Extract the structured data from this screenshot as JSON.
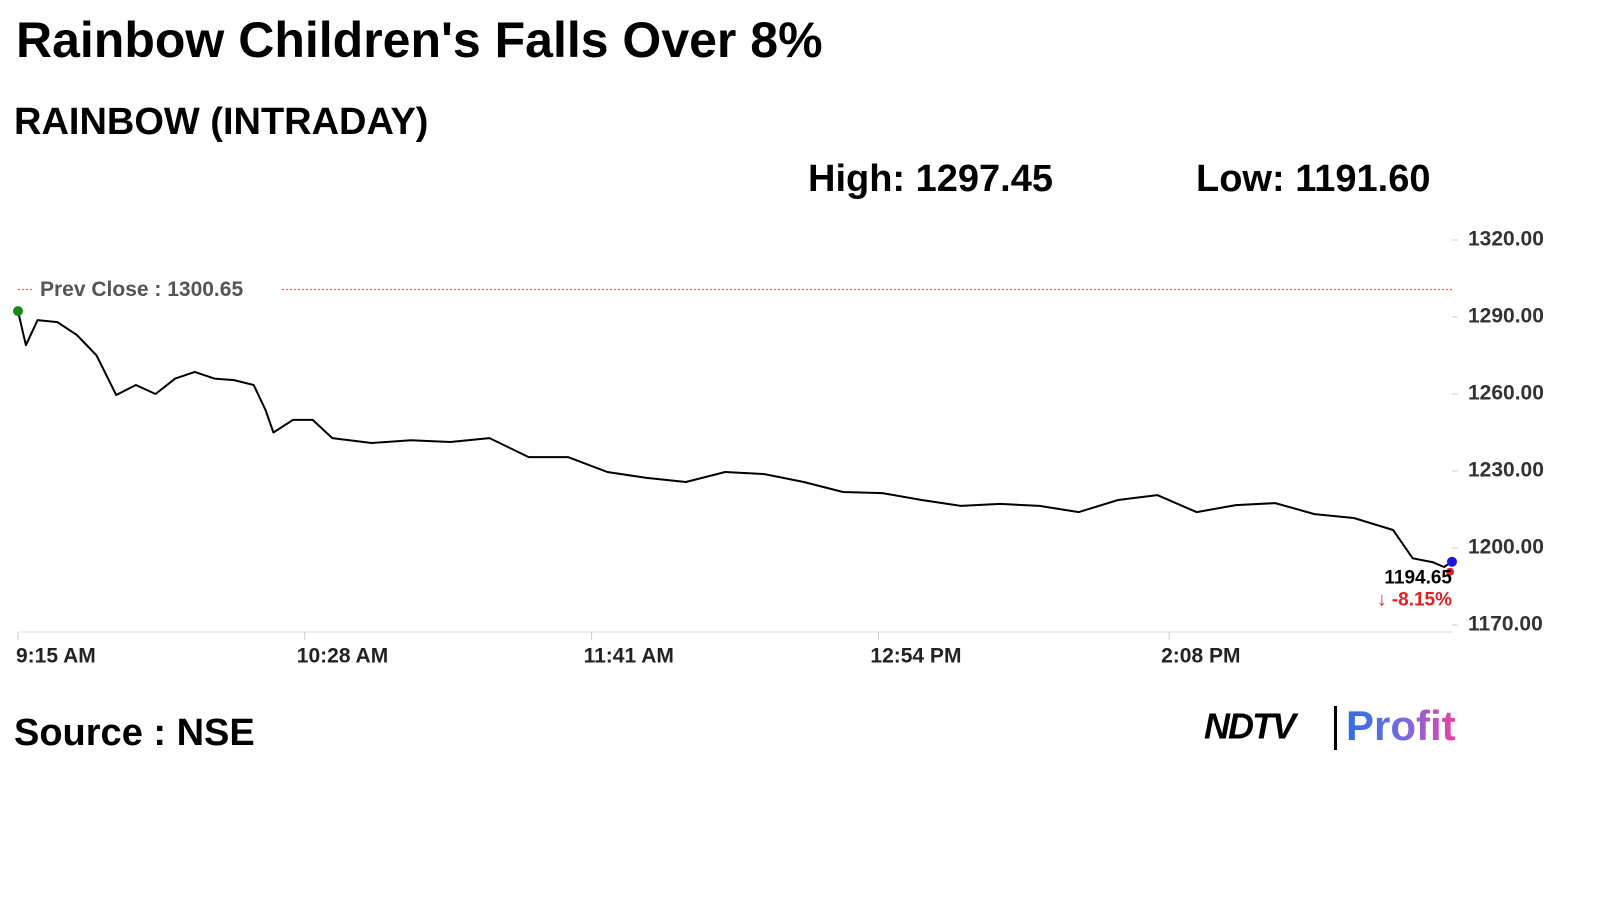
{
  "chart_data": {
    "type": "line",
    "title": "Rainbow Children's Falls Over 8%",
    "subtitle": "RAINBOW (INTRADAY)",
    "annotations": {
      "high": "High: 1297.45",
      "low": "Low: 1191.60",
      "last_price": "1194.65",
      "change": "↓ -8.15%"
    },
    "prev_close": {
      "value": 1300.65,
      "label": "Prev Close : 1300.65",
      "color": "#d9534f"
    },
    "source": "Source : NSE",
    "logo": {
      "brand": "NDTV",
      "product": "Profit"
    },
    "xlim": [
      "9:15 AM",
      "3:20 PM"
    ],
    "xticks": [
      "9:15 AM",
      "10:28 AM",
      "11:41 AM",
      "12:54 PM",
      "2:08 PM"
    ],
    "ylim": [
      1170,
      1320
    ],
    "yticks": [
      {
        "value": 1170,
        "label": "1170.00"
      },
      {
        "value": 1200,
        "label": "1200.00"
      },
      {
        "value": 1230,
        "label": "1230.00"
      },
      {
        "value": 1260,
        "label": "1260.00"
      },
      {
        "value": 1290,
        "label": "1290.00"
      },
      {
        "value": 1320,
        "label": "1320.00"
      }
    ],
    "series": [
      {
        "name": "RAINBOW",
        "color": "#000000",
        "x": [
          "9:15 AM",
          "9:17 AM",
          "9:20 AM",
          "9:25 AM",
          "9:30 AM",
          "9:35 AM",
          "9:40 AM",
          "9:45 AM",
          "9:50 AM",
          "9:55 AM",
          "10:00 AM",
          "10:05 AM",
          "10:10 AM",
          "10:15 AM",
          "10:18 AM",
          "10:20 AM",
          "10:25 AM",
          "10:30 AM",
          "10:35 AM",
          "10:45 AM",
          "10:55 AM",
          "11:05 AM",
          "11:15 AM",
          "11:25 AM",
          "11:35 AM",
          "11:45 AM",
          "11:55 AM",
          "12:05 PM",
          "12:15 PM",
          "12:25 PM",
          "12:35 PM",
          "12:45 PM",
          "12:55 PM",
          "1:05 PM",
          "1:15 PM",
          "1:25 PM",
          "1:35 PM",
          "1:45 PM",
          "1:55 PM",
          "2:05 PM",
          "2:15 PM",
          "2:25 PM",
          "2:35 PM",
          "2:45 PM",
          "2:55 PM",
          "3:05 PM",
          "3:10 PM",
          "3:15 PM",
          "3:18 PM",
          "3:20 PM"
        ],
        "values": [
          1292.3,
          1279,
          1288.8,
          1288,
          1283,
          1275,
          1259.6,
          1263.5,
          1260,
          1266,
          1268.6,
          1266,
          1265.4,
          1263.5,
          1253.8,
          1245,
          1249.9,
          1249.9,
          1242.8,
          1240.9,
          1242,
          1241.3,
          1242.8,
          1235.4,
          1235.4,
          1229.6,
          1227.3,
          1225.7,
          1229.6,
          1228.8,
          1225.7,
          1221.8,
          1221.4,
          1218.7,
          1216.4,
          1217.2,
          1216.4,
          1214,
          1218.7,
          1220.6,
          1214,
          1216.7,
          1217.5,
          1213.2,
          1211.7,
          1207,
          1196,
          1194.5,
          1192.6,
          1194.65
        ]
      }
    ],
    "start_color": "#1a8a1a",
    "end_color": "#1a1adf",
    "change_color": "#e02020"
  }
}
